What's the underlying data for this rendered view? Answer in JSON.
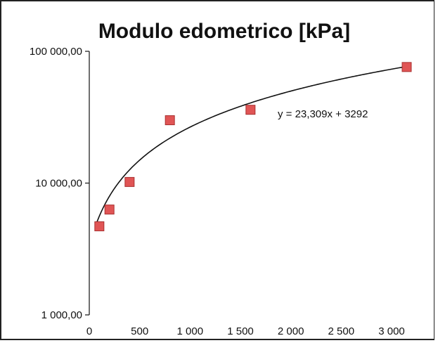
{
  "chart_data": {
    "type": "scatter",
    "title": "Modulo edometrico [kPa]",
    "xlabel": "",
    "ylabel": "",
    "xlim": [
      0,
      3200
    ],
    "ylim": [
      1000,
      100000
    ],
    "y_scale": "log",
    "grid": false,
    "x_ticks": [
      0,
      500,
      1000,
      1500,
      2000,
      2500,
      3000
    ],
    "x_tick_labels": [
      "0",
      "500",
      "1 000",
      "1 500",
      "2 000",
      "2 500",
      "3 000"
    ],
    "y_ticks": [
      1000,
      10000,
      100000
    ],
    "y_tick_labels": [
      "1 000,00",
      "10 000,00",
      "100 000,00"
    ],
    "series": [
      {
        "marker": "square",
        "color": "#e05555",
        "edge_color": "#a83030",
        "points": [
          {
            "x": 100,
            "y": 4700
          },
          {
            "x": 200,
            "y": 6300
          },
          {
            "x": 400,
            "y": 10200
          },
          {
            "x": 800,
            "y": 30000
          },
          {
            "x": 1600,
            "y": 36000
          },
          {
            "x": 3150,
            "y": 76000
          }
        ]
      }
    ],
    "trendline": {
      "color": "#111111",
      "slope": 23.309,
      "intercept": 3292,
      "x_range": [
        60,
        3150
      ],
      "equation": "y = 23,309x + 3292"
    }
  }
}
